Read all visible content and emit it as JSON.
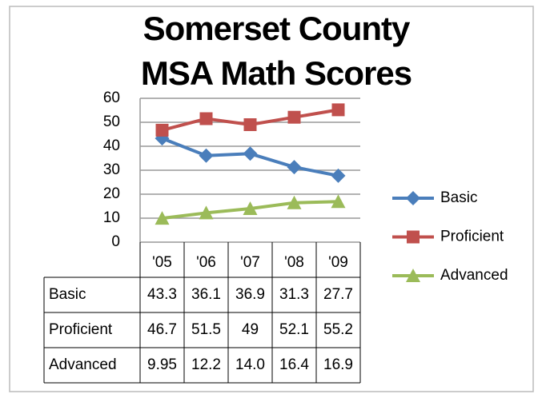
{
  "chart_data": {
    "type": "line",
    "title": "Somerset County MSA Math Scores",
    "categories": [
      "'05",
      "'06",
      "'07",
      "'08",
      "'09"
    ],
    "series": [
      {
        "name": "Basic",
        "color": "#4a7ebb",
        "marker": "diamond",
        "values": [
          43.3,
          36.1,
          36.9,
          31.3,
          27.7
        ]
      },
      {
        "name": "Proficient",
        "color": "#c0504d",
        "marker": "square",
        "values": [
          46.7,
          51.5,
          49,
          52.1,
          55.2
        ]
      },
      {
        "name": "Advanced",
        "color": "#9bbb59",
        "marker": "triangle",
        "values": [
          9.95,
          12.2,
          14.0,
          16.4,
          16.9
        ],
        "value_labels": [
          "9.95",
          "12.2",
          "14.0",
          "16.4",
          "16.9"
        ]
      }
    ],
    "ylim": [
      0,
      60
    ],
    "yticks": [
      0,
      10,
      20,
      30,
      40,
      50,
      60
    ],
    "grid": true,
    "legend": "right",
    "data_table": true
  }
}
